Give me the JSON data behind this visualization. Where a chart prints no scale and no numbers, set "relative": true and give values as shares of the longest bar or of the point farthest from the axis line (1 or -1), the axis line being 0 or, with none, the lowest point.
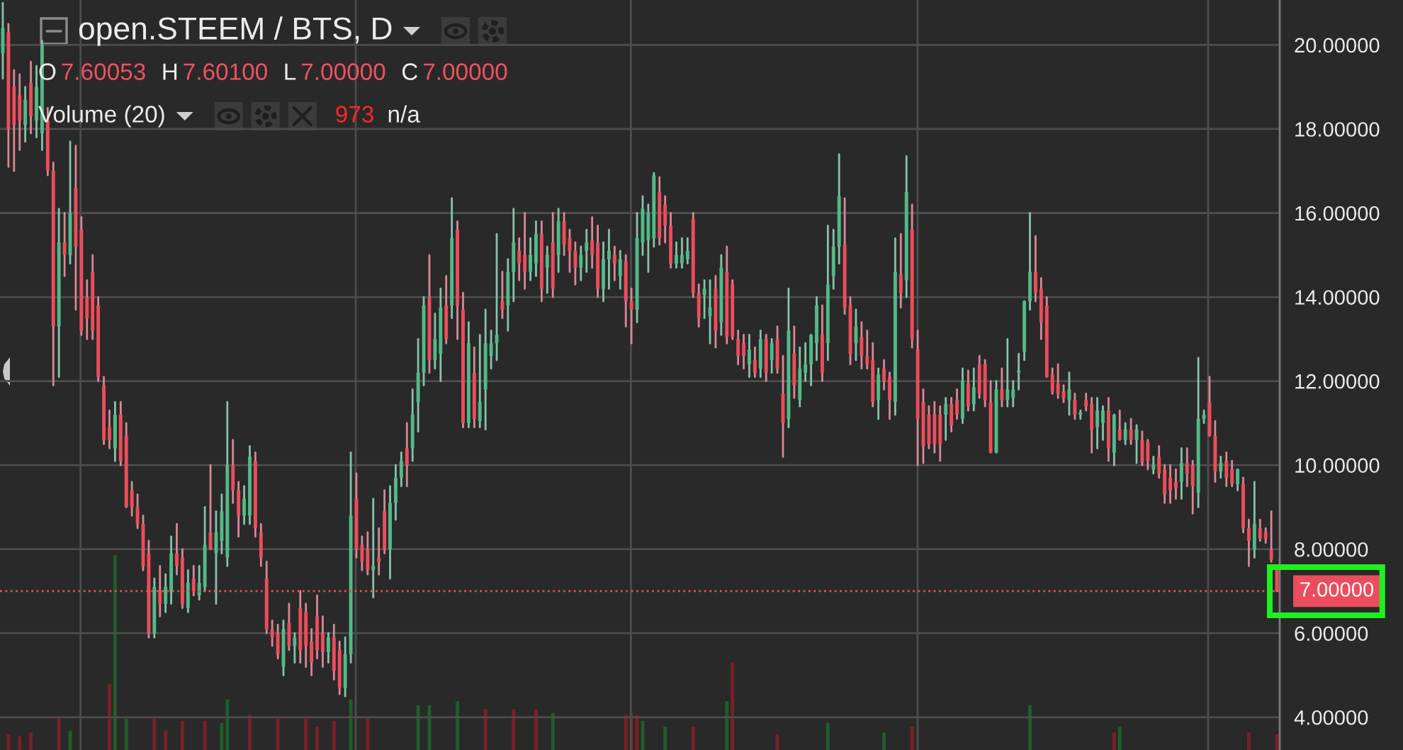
{
  "chart_data": [
    {
      "type": "candlestick",
      "title": "open.STEEM / BTS, D",
      "categories": [
        null,
        null,
        null,
        null,
        null,
        null,
        null,
        null,
        null,
        null,
        null,
        null,
        null,
        null,
        null,
        null,
        null,
        null,
        null,
        null,
        null,
        null,
        null,
        null,
        null,
        null,
        null,
        null,
        null,
        null,
        null,
        null,
        null,
        null,
        null,
        null,
        null,
        null,
        null,
        null,
        null,
        null,
        null,
        null,
        null,
        null,
        null,
        null,
        null,
        null,
        null,
        null,
        null,
        null,
        null,
        null,
        null,
        null,
        null,
        null,
        null,
        null,
        null,
        null,
        null,
        null,
        null,
        null,
        null,
        null,
        null,
        null,
        null,
        null,
        null,
        null,
        null,
        null,
        null,
        null,
        null,
        null,
        null,
        null,
        null,
        null,
        null,
        null,
        null,
        null,
        null,
        null,
        null,
        null,
        null,
        null,
        null,
        null,
        null,
        null,
        null,
        null,
        null,
        null,
        null,
        null,
        null,
        null,
        null,
        null,
        null,
        null,
        null,
        null,
        null,
        null,
        null,
        null,
        null,
        null,
        null,
        null,
        null,
        null,
        null,
        null,
        null,
        null,
        null,
        null,
        null,
        null,
        null,
        null,
        null,
        null,
        null,
        null,
        null,
        null,
        null,
        null,
        null,
        null,
        null,
        null,
        null,
        null,
        null,
        null,
        null,
        null,
        null,
        null,
        null,
        null,
        null,
        null,
        null,
        null,
        null,
        null,
        null,
        null,
        null,
        null,
        null,
        null,
        null,
        null,
        null,
        null,
        null,
        null,
        null,
        null,
        null,
        null,
        null,
        null,
        null,
        null,
        null,
        null,
        null,
        null,
        null,
        null,
        null,
        null,
        null,
        null,
        null,
        null,
        null,
        null,
        null,
        null,
        null,
        null,
        null,
        null,
        null,
        null,
        null,
        null,
        null,
        null,
        null,
        null,
        null,
        null,
        null,
        null,
        null,
        null,
        null,
        null,
        null,
        null,
        null,
        null,
        null,
        null,
        null,
        null,
        null,
        null
      ],
      "ohlc": [
        [
          19.8,
          21.0,
          19.2,
          20.4
        ],
        [
          20.3,
          20.5,
          17.1,
          18.0
        ],
        [
          19.0,
          19.4,
          17.0,
          18.1
        ],
        [
          18.8,
          19.3,
          17.5,
          18.2
        ],
        [
          18.1,
          19.0,
          17.7,
          18.7
        ],
        [
          19.1,
          19.6,
          17.9,
          18.3
        ],
        [
          18.2,
          19.5,
          17.8,
          19.0
        ],
        [
          17.9,
          20.1,
          17.5,
          20.0
        ],
        [
          18.2,
          18.5,
          16.9,
          17.0
        ],
        [
          17.0,
          17.2,
          11.9,
          13.3
        ],
        [
          13.3,
          16.1,
          12.1,
          15.3
        ],
        [
          15.3,
          16.0,
          14.5,
          15.0
        ],
        [
          15.0,
          17.7,
          14.8,
          16.0
        ],
        [
          16.6,
          17.6,
          13.7,
          15.2
        ],
        [
          15.6,
          15.9,
          13.1,
          13.2
        ],
        [
          14.0,
          14.4,
          13.0,
          13.5
        ],
        [
          14.6,
          15.0,
          13.0,
          13.2
        ],
        [
          13.8,
          14.0,
          12.0,
          12.1
        ],
        [
          11.9,
          12.1,
          10.5,
          10.6
        ],
        [
          10.9,
          11.3,
          10.4,
          10.6
        ],
        [
          10.4,
          11.5,
          10.1,
          11.2
        ],
        [
          11.2,
          11.5,
          10.0,
          10.1
        ],
        [
          10.7,
          11.0,
          9.0,
          9.0
        ],
        [
          9.4,
          9.6,
          8.8,
          9.0
        ],
        [
          9.0,
          9.3,
          8.5,
          8.6
        ],
        [
          8.6,
          8.8,
          7.5,
          7.6
        ],
        [
          7.9,
          8.2,
          5.9,
          6.0
        ],
        [
          6.0,
          7.3,
          5.9,
          7.1
        ],
        [
          7.0,
          7.6,
          6.4,
          6.7
        ],
        [
          6.7,
          7.4,
          6.5,
          7.1
        ],
        [
          7.0,
          8.3,
          6.7,
          7.9
        ],
        [
          7.9,
          8.6,
          7.4,
          7.6
        ],
        [
          7.8,
          8.0,
          6.6,
          6.7
        ],
        [
          6.6,
          7.5,
          6.5,
          7.2
        ],
        [
          7.3,
          7.6,
          6.9,
          7.0
        ],
        [
          6.9,
          7.6,
          6.8,
          7.2
        ],
        [
          7.1,
          9.0,
          7.0,
          8.1
        ],
        [
          8.4,
          10.0,
          8.0,
          8.0
        ],
        [
          7.9,
          8.9,
          6.7,
          8.4
        ],
        [
          8.2,
          9.3,
          7.9,
          8.9
        ],
        [
          7.8,
          11.5,
          7.6,
          10.0
        ],
        [
          10.0,
          10.6,
          9.1,
          9.4
        ],
        [
          9.4,
          9.6,
          8.3,
          8.8
        ],
        [
          8.8,
          9.5,
          8.6,
          9.2
        ],
        [
          8.8,
          10.45,
          8.6,
          10.2
        ],
        [
          10.1,
          10.3,
          8.3,
          8.5
        ],
        [
          8.4,
          8.6,
          7.6,
          7.8
        ],
        [
          7.3,
          7.7,
          6.0,
          6.1
        ],
        [
          6.1,
          6.3,
          5.7,
          5.9
        ],
        [
          6.0,
          6.2,
          5.4,
          5.5
        ],
        [
          5.2,
          6.3,
          5.0,
          6.1
        ],
        [
          6.25,
          6.7,
          5.6,
          5.7
        ],
        [
          5.7,
          6.0,
          5.3,
          5.9
        ],
        [
          6.6,
          7.0,
          5.3,
          5.6
        ],
        [
          6.5,
          6.7,
          5.2,
          5.7
        ],
        [
          5.8,
          6.1,
          5.0,
          5.3
        ],
        [
          6.4,
          6.9,
          5.4,
          5.6
        ],
        [
          6.0,
          6.4,
          5.2,
          5.55
        ],
        [
          5.55,
          6.0,
          5.3,
          5.9
        ],
        [
          5.9,
          6.2,
          4.9,
          5.1
        ],
        [
          5.6,
          5.8,
          4.55,
          4.7
        ],
        [
          4.7,
          5.9,
          4.5,
          5.5
        ],
        [
          5.5,
          10.3,
          5.3,
          8.8
        ],
        [
          9.2,
          9.8,
          7.8,
          8.0
        ],
        [
          8.1,
          8.3,
          7.5,
          7.7
        ],
        [
          8.0,
          8.4,
          7.4,
          7.5
        ],
        [
          7.5,
          9.2,
          6.85,
          7.6
        ],
        [
          7.8,
          8.5,
          7.4,
          7.7
        ],
        [
          8.9,
          9.4,
          7.9,
          8.0
        ],
        [
          8.0,
          9.5,
          7.3,
          9.1
        ],
        [
          9.1,
          10.0,
          8.7,
          9.7
        ],
        [
          9.7,
          10.3,
          9.5,
          10.1
        ],
        [
          10.4,
          11.0,
          9.5,
          10.0
        ],
        [
          10.4,
          11.8,
          10.1,
          11.2
        ],
        [
          11.5,
          13.0,
          10.8,
          12.2
        ],
        [
          12.2,
          14.0,
          11.9,
          13.8
        ],
        [
          14.0,
          15.0,
          12.2,
          12.5
        ],
        [
          12.5,
          13.6,
          12.3,
          13.0
        ],
        [
          12.65,
          14.2,
          12.0,
          13.75
        ],
        [
          13.8,
          14.5,
          12.9,
          13.0
        ],
        [
          13.8,
          16.35,
          13.5,
          15.4
        ],
        [
          15.6,
          15.8,
          13.0,
          13.8
        ],
        [
          13.7,
          14.1,
          10.9,
          11.0
        ],
        [
          11.0,
          13.4,
          10.9,
          12.9
        ],
        [
          12.2,
          12.8,
          10.9,
          11.1
        ],
        [
          11.05,
          13.1,
          10.9,
          11.5
        ],
        [
          11.8,
          13.7,
          10.85,
          12.9
        ],
        [
          12.6,
          13.2,
          12.3,
          12.9
        ],
        [
          12.9,
          15.5,
          12.5,
          13.1
        ],
        [
          13.9,
          14.6,
          13.5,
          13.7
        ],
        [
          13.8,
          14.9,
          13.2,
          14.6
        ],
        [
          14.6,
          16.1,
          13.9,
          15.3
        ],
        [
          15.1,
          15.4,
          14.4,
          14.8
        ],
        [
          15.0,
          16.0,
          14.2,
          14.6
        ],
        [
          14.6,
          15.4,
          14.4,
          15.0
        ],
        [
          14.8,
          15.8,
          14.5,
          15.5
        ],
        [
          15.5,
          15.8,
          13.9,
          14.2
        ],
        [
          14.7,
          15.2,
          14.1,
          15.0
        ],
        [
          15.3,
          16.0,
          14.0,
          14.2
        ],
        [
          15.0,
          16.1,
          14.6,
          15.8
        ],
        [
          15.8,
          16.0,
          15.0,
          15.25
        ],
        [
          15.4,
          15.6,
          14.6,
          15.1
        ],
        [
          15.1,
          15.3,
          14.3,
          14.7
        ],
        [
          14.7,
          15.2,
          14.4,
          15.0
        ],
        [
          15.1,
          15.6,
          14.6,
          15.3
        ],
        [
          15.35,
          15.9,
          14.7,
          15.0
        ],
        [
          15.3,
          15.7,
          14.0,
          14.2
        ],
        [
          14.2,
          15.3,
          13.9,
          14.9
        ],
        [
          14.9,
          15.6,
          14.2,
          15.1
        ],
        [
          15.0,
          15.2,
          14.4,
          14.8
        ],
        [
          14.5,
          15.1,
          14.2,
          14.9
        ],
        [
          14.85,
          15.0,
          13.3,
          13.9
        ],
        [
          13.9,
          14.2,
          12.9,
          13.7
        ],
        [
          13.7,
          16.0,
          13.4,
          15.4
        ],
        [
          15.3,
          16.4,
          15.0,
          16.1
        ],
        [
          15.35,
          16.2,
          14.6,
          16.0
        ],
        [
          15.4,
          16.95,
          15.2,
          16.9
        ],
        [
          16.5,
          16.85,
          15.25,
          15.4
        ],
        [
          16.2,
          16.4,
          15.3,
          15.7
        ],
        [
          15.7,
          16.0,
          14.7,
          14.8
        ],
        [
          14.8,
          15.3,
          14.7,
          15.0
        ],
        [
          14.8,
          15.4,
          14.7,
          15.0
        ],
        [
          14.9,
          15.4,
          14.8,
          15.1
        ],
        [
          15.85,
          16.0,
          14.0,
          14.1
        ],
        [
          14.1,
          14.3,
          13.3,
          13.5
        ],
        [
          14.05,
          14.4,
          13.5,
          14.2
        ],
        [
          13.55,
          14.4,
          12.9,
          13.75
        ],
        [
          14.2,
          14.5,
          12.8,
          13.2
        ],
        [
          13.4,
          15.0,
          13.1,
          14.7
        ],
        [
          14.6,
          15.2,
          12.9,
          13.05
        ],
        [
          14.3,
          14.4,
          13.0,
          13.05
        ],
        [
          13.0,
          13.2,
          12.4,
          12.6
        ],
        [
          12.9,
          13.1,
          12.3,
          12.6
        ],
        [
          12.4,
          13.1,
          12.1,
          12.75
        ],
        [
          12.5,
          12.8,
          12.1,
          12.2
        ],
        [
          12.3,
          13.2,
          12.1,
          13.0
        ],
        [
          13.0,
          13.1,
          12.0,
          12.2
        ],
        [
          12.5,
          13.0,
          12.2,
          12.9
        ],
        [
          13.0,
          13.3,
          12.2,
          12.3
        ],
        [
          11.7,
          12.6,
          10.2,
          11.0
        ],
        [
          11.1,
          14.2,
          10.9,
          13.2
        ],
        [
          12.65,
          13.3,
          11.6,
          11.9
        ],
        [
          11.55,
          12.8,
          11.4,
          12.3
        ],
        [
          12.2,
          12.9,
          12.0,
          12.4
        ],
        [
          12.4,
          13.1,
          11.9,
          13.1
        ],
        [
          12.9,
          14.0,
          12.5,
          13.8
        ],
        [
          13.1,
          13.8,
          12.0,
          12.2
        ],
        [
          12.9,
          15.7,
          12.5,
          14.3
        ],
        [
          14.5,
          15.6,
          14.2,
          15.2
        ],
        [
          15.2,
          17.4,
          14.8,
          16.4
        ],
        [
          15.25,
          16.35,
          13.6,
          13.75
        ],
        [
          13.8,
          14.0,
          12.4,
          12.65
        ],
        [
          12.9,
          13.7,
          12.5,
          13.3
        ],
        [
          13.05,
          13.4,
          12.3,
          12.6
        ],
        [
          12.6,
          13.2,
          12.3,
          12.4
        ],
        [
          12.5,
          12.9,
          11.4,
          11.5
        ],
        [
          11.55,
          12.3,
          11.1,
          12.15
        ],
        [
          12.3,
          12.5,
          11.8,
          12.0
        ],
        [
          12.1,
          12.2,
          11.1,
          11.55
        ],
        [
          11.5,
          15.4,
          11.2,
          14.6
        ],
        [
          14.55,
          15.5,
          13.75,
          14.1
        ],
        [
          14.4,
          17.35,
          14.0,
          16.5
        ],
        [
          15.6,
          16.2,
          12.8,
          13.0
        ],
        [
          12.75,
          13.2,
          10.0,
          11.1
        ],
        [
          11.5,
          11.8,
          10.05,
          10.45
        ],
        [
          11.2,
          11.4,
          10.4,
          10.5
        ],
        [
          11.2,
          11.5,
          10.3,
          10.5
        ],
        [
          11.2,
          11.4,
          10.1,
          10.5
        ],
        [
          11.2,
          11.6,
          10.6,
          11.45
        ],
        [
          11.45,
          11.6,
          10.8,
          10.95
        ],
        [
          11.55,
          11.8,
          11.1,
          11.2
        ],
        [
          11.1,
          12.3,
          11.0,
          12.0
        ],
        [
          11.95,
          12.25,
          11.3,
          11.4
        ],
        [
          11.45,
          12.3,
          11.3,
          11.85
        ],
        [
          12.4,
          12.6,
          11.6,
          11.7
        ],
        [
          12.4,
          12.5,
          11.4,
          11.55
        ],
        [
          11.5,
          12.0,
          10.3,
          10.3
        ],
        [
          10.3,
          12.0,
          10.3,
          11.8
        ],
        [
          11.8,
          12.3,
          11.4,
          11.55
        ],
        [
          11.55,
          13.0,
          11.4,
          11.8
        ],
        [
          11.6,
          12.0,
          11.4,
          11.8
        ],
        [
          12.2,
          12.65,
          11.8,
          12.25
        ],
        [
          12.7,
          13.9,
          12.5,
          13.9
        ],
        [
          13.9,
          16.0,
          13.7,
          14.6
        ],
        [
          14.6,
          15.45,
          13.9,
          14.1
        ],
        [
          14.2,
          14.45,
          13.0,
          13.4
        ],
        [
          13.8,
          14.0,
          12.1,
          12.1
        ],
        [
          12.15,
          12.3,
          11.7,
          11.75
        ],
        [
          11.95,
          12.4,
          11.6,
          11.7
        ],
        [
          11.75,
          11.9,
          11.5,
          11.6
        ],
        [
          11.55,
          12.2,
          11.2,
          11.8
        ],
        [
          11.55,
          11.7,
          11.1,
          11.2
        ],
        [
          11.2,
          11.3,
          11.1,
          11.25
        ],
        [
          11.55,
          11.7,
          11.3,
          11.4
        ],
        [
          11.45,
          11.6,
          10.3,
          10.85
        ],
        [
          10.9,
          11.6,
          10.4,
          11.3
        ],
        [
          11.0,
          11.4,
          10.6,
          11.3
        ],
        [
          11.3,
          11.6,
          10.1,
          10.4
        ],
        [
          10.3,
          11.2,
          10.0,
          11.2
        ],
        [
          10.85,
          11.3,
          10.6,
          10.6
        ],
        [
          10.6,
          11.0,
          10.5,
          10.85
        ],
        [
          10.85,
          11.1,
          10.5,
          10.6
        ],
        [
          10.6,
          10.95,
          10.05,
          10.85
        ],
        [
          10.6,
          10.8,
          10.0,
          10.05
        ],
        [
          10.55,
          10.6,
          9.9,
          10.1
        ],
        [
          9.9,
          10.2,
          9.8,
          10.0
        ],
        [
          10.2,
          10.45,
          9.7,
          9.8
        ],
        [
          9.9,
          10.0,
          9.1,
          9.3
        ],
        [
          9.7,
          10.0,
          9.1,
          9.4
        ],
        [
          9.6,
          9.9,
          9.2,
          9.45
        ],
        [
          9.6,
          10.4,
          9.2,
          10.05
        ],
        [
          10.05,
          10.4,
          9.5,
          9.8
        ],
        [
          10.0,
          10.1,
          8.85,
          9.5
        ],
        [
          9.35,
          12.55,
          9.0,
          11.1
        ],
        [
          11.1,
          11.3,
          11.0,
          11.2
        ],
        [
          11.5,
          12.1,
          10.7,
          10.7
        ],
        [
          10.7,
          11.05,
          9.6,
          9.85
        ],
        [
          9.85,
          10.2,
          9.7,
          10.05
        ],
        [
          10.1,
          10.3,
          9.5,
          9.7
        ],
        [
          9.9,
          10.1,
          9.5,
          9.55
        ],
        [
          9.55,
          9.9,
          9.4,
          9.9
        ],
        [
          9.55,
          9.7,
          8.4,
          8.5
        ],
        [
          8.5,
          8.7,
          7.6,
          8.2
        ],
        [
          8.0,
          9.6,
          7.8,
          8.6
        ],
        [
          8.5,
          8.7,
          8.2,
          8.25
        ],
        [
          8.4,
          8.5,
          8.15,
          8.25
        ],
        [
          8.0,
          8.9,
          7.7,
          7.75
        ],
        [
          7.60053,
          7.601,
          7.0,
          7.0
        ]
      ],
      "colors": [
        "#53b987",
        "#eb4d5c",
        "#eb4d5c",
        "#eb4d5c",
        "#53b987",
        "#eb4d5c",
        "#53b987",
        "#53b987",
        "#eb4d5c",
        "#eb4d5c",
        "#53b987",
        "#eb4d5c",
        "#53b987",
        "#eb4d5c",
        "#eb4d5c",
        "#eb4d5c",
        "#eb4d5c",
        "#eb4d5c",
        "#eb4d5c",
        "#eb4d5c",
        "#53b987",
        "#eb4d5c",
        "#eb4d5c",
        "#eb4d5c",
        "#eb4d5c",
        "#eb4d5c",
        "#eb4d5c",
        "#53b987",
        "#eb4d5c",
        "#53b987",
        "#53b987",
        "#eb4d5c",
        "#eb4d5c",
        "#53b987",
        "#eb4d5c",
        "#53b987",
        "#53b987",
        "#eb4d5c",
        "#53b987",
        "#53b987",
        "#53b987",
        "#eb4d5c",
        "#eb4d5c",
        "#53b987",
        "#53b987",
        "#eb4d5c",
        "#eb4d5c",
        "#eb4d5c",
        "#eb4d5c",
        "#eb4d5c",
        "#53b987",
        "#eb4d5c",
        "#53b987",
        "#eb4d5c",
        "#eb4d5c",
        "#eb4d5c",
        "#eb4d5c",
        "#eb4d5c",
        "#53b987",
        "#eb4d5c",
        "#eb4d5c",
        "#53b987",
        "#53b987",
        "#eb4d5c",
        "#eb4d5c",
        "#eb4d5c",
        "#53b987",
        "#eb4d5c",
        "#eb4d5c",
        "#53b987",
        "#53b987",
        "#53b987",
        "#eb4d5c",
        "#53b987",
        "#53b987",
        "#53b987",
        "#eb4d5c",
        "#53b987",
        "#53b987",
        "#eb4d5c",
        "#53b987",
        "#eb4d5c",
        "#eb4d5c",
        "#53b987",
        "#eb4d5c",
        "#53b987",
        "#53b987",
        "#53b987",
        "#53b987",
        "#eb4d5c",
        "#53b987",
        "#53b987",
        "#eb4d5c",
        "#eb4d5c",
        "#53b987",
        "#53b987",
        "#eb4d5c",
        "#53b987",
        "#eb4d5c",
        "#53b987",
        "#eb4d5c",
        "#eb4d5c",
        "#eb4d5c",
        "#53b987",
        "#53b987",
        "#eb4d5c",
        "#eb4d5c",
        "#53b987",
        "#53b987",
        "#eb4d5c",
        "#53b987",
        "#eb4d5c",
        "#eb4d5c",
        "#53b987",
        "#53b987",
        "#53b987",
        "#53b987",
        "#eb4d5c",
        "#eb4d5c",
        "#eb4d5c",
        "#53b987",
        "#53b987",
        "#53b987",
        "#eb4d5c",
        "#eb4d5c",
        "#53b987",
        "#53b987",
        "#eb4d5c",
        "#53b987",
        "#eb4d5c",
        "#eb4d5c",
        "#eb4d5c",
        "#eb4d5c",
        "#53b987",
        "#eb4d5c",
        "#53b987",
        "#eb4d5c",
        "#53b987",
        "#eb4d5c",
        "#eb4d5c",
        "#53b987",
        "#eb4d5c",
        "#53b987",
        "#53b987",
        "#53b987",
        "#53b987",
        "#eb4d5c",
        "#53b987",
        "#53b987",
        "#53b987",
        "#eb4d5c",
        "#eb4d5c",
        "#53b987",
        "#eb4d5c",
        "#eb4d5c",
        "#eb4d5c",
        "#53b987",
        "#eb4d5c",
        "#eb4d5c",
        "#53b987",
        "#eb4d5c",
        "#53b987",
        "#eb4d5c",
        "#eb4d5c",
        "#eb4d5c",
        "#eb4d5c",
        "#eb4d5c",
        "#eb4d5c",
        "#53b987",
        "#eb4d5c",
        "#eb4d5c",
        "#53b987",
        "#eb4d5c",
        "#53b987",
        "#eb4d5c",
        "#eb4d5c",
        "#eb4d5c",
        "#53b987",
        "#eb4d5c",
        "#53b987",
        "#53b987",
        "#53b987",
        "#53b987",
        "#53b987",
        "#eb4d5c",
        "#eb4d5c",
        "#eb4d5c",
        "#eb4d5c",
        "#eb4d5c",
        "#eb4d5c",
        "#53b987",
        "#eb4d5c",
        "#53b987",
        "#eb4d5c",
        "#eb4d5c",
        "#53b987",
        "#53b987",
        "#eb4d5c",
        "#53b987",
        "#eb4d5c",
        "#53b987",
        "#eb4d5c",
        "#53b987",
        "#eb4d5c",
        "#eb4d5c",
        "#53b987",
        "#eb4d5c",
        "#eb4d5c",
        "#eb4d5c",
        "#eb4d5c",
        "#53b987",
        "#eb4d5c",
        "#eb4d5c",
        "#53b987",
        "#53b987",
        "#eb4d5c",
        "#eb4d5c",
        "#53b987",
        "#eb4d5c",
        "#eb4d5c",
        "#53b987",
        "#eb4d5c",
        "#eb4d5c",
        "#53b987",
        "#eb4d5c",
        "#eb4d5c",
        "#eb4d5c",
        "#eb4d5c"
      ],
      "ylim": [
        3.22,
        21.07
      ],
      "yticks": [
        {
          "value": 4,
          "label": "4.00000"
        },
        {
          "value": 6,
          "label": "6.00000"
        },
        {
          "value": 8,
          "label": "8.00000"
        },
        {
          "value": 10,
          "label": "10.00000"
        },
        {
          "value": 12,
          "label": "12.00000"
        },
        {
          "value": 14,
          "label": "14.00000"
        },
        {
          "value": 16,
          "label": "16.00000"
        },
        {
          "value": 18,
          "label": "18.00000"
        },
        {
          "value": 20,
          "label": "20.00000"
        }
      ],
      "grid": true,
      "ref_lines": [
        {
          "axis": "y",
          "value": 7.0,
          "label": "7.00000",
          "color": "#eb4d5c",
          "line_style": "dotted"
        }
      ],
      "annotations": [
        "O 7.60053",
        "H 7.60100",
        "L 7.00000",
        "C 7.00000"
      ]
    },
    {
      "type": "bar",
      "title": "Volume (20)",
      "relative": true,
      "categories": [
        null,
        null,
        null,
        null,
        null,
        null,
        null,
        null,
        null,
        null,
        null,
        null,
        null,
        null,
        null,
        null,
        null,
        null,
        null,
        null,
        null,
        null,
        null,
        null,
        null,
        null,
        null,
        null,
        null,
        null,
        null,
        null,
        null,
        null,
        null,
        null,
        null,
        null,
        null,
        null,
        null,
        null,
        null,
        null,
        null,
        null,
        null,
        null,
        null,
        null,
        null,
        null,
        null,
        null,
        null,
        null,
        null,
        null,
        null,
        null,
        null,
        null,
        null,
        null,
        null,
        null,
        null,
        null,
        null,
        null,
        null,
        null,
        null,
        null,
        null,
        null,
        null,
        null,
        null,
        null,
        null,
        null,
        null,
        null,
        null,
        null,
        null,
        null,
        null,
        null,
        null,
        null,
        null,
        null,
        null,
        null,
        null,
        null,
        null,
        null,
        null,
        null,
        null,
        null,
        null,
        null,
        null,
        null,
        null,
        null,
        null,
        null,
        null,
        null,
        null,
        null,
        null,
        null,
        null,
        null,
        null,
        null,
        null,
        null,
        null,
        null,
        null,
        null,
        null,
        null,
        null,
        null,
        null,
        null,
        null,
        null,
        null,
        null,
        null,
        null,
        null,
        null,
        null,
        null,
        null,
        null,
        null,
        null,
        null,
        null,
        null,
        null,
        null,
        null,
        null,
        null,
        null,
        null,
        null,
        null,
        null,
        null,
        null,
        null,
        null,
        null,
        null,
        null,
        null,
        null,
        null,
        null,
        null,
        null,
        null,
        null,
        null,
        null,
        null,
        null,
        null,
        null,
        null,
        null,
        null,
        null,
        null,
        null,
        null,
        null,
        null,
        null,
        null,
        null,
        null,
        null,
        null,
        null,
        null,
        null,
        null,
        null,
        null,
        null,
        null,
        null,
        null,
        null,
        null,
        null,
        null,
        null,
        null,
        null,
        null,
        null,
        null,
        null,
        null,
        null,
        null,
        null,
        null,
        null,
        null,
        null,
        null,
        null
      ],
      "values": [
        null,
        0.08,
        null,
        0.07,
        null,
        0.09,
        null,
        null,
        null,
        null,
        0.16,
        null,
        0.1,
        null,
        null,
        null,
        null,
        null,
        null,
        0.34,
        1,
        null,
        0.16,
        null,
        null,
        null,
        null,
        0.16,
        null,
        0.1,
        null,
        null,
        0.15,
        null,
        null,
        null,
        0.15,
        null,
        null,
        0.14,
        0.26,
        null,
        null,
        null,
        0.18,
        null,
        null,
        null,
        null,
        0.16,
        null,
        null,
        null,
        null,
        0.16,
        null,
        0.12,
        null,
        null,
        0.15,
        null,
        null,
        0.26,
        null,
        null,
        0.16,
        null,
        null,
        null,
        null,
        null,
        null,
        null,
        null,
        0.23,
        null,
        0.23,
        null,
        null,
        null,
        null,
        0.25,
        null,
        null,
        null,
        null,
        0.21,
        null,
        null,
        null,
        null,
        0.21,
        null,
        null,
        null,
        0.21,
        null,
        null,
        0.19,
        null,
        null,
        null,
        null,
        null,
        null,
        null,
        null,
        null,
        null,
        null,
        null,
        0.18,
        0.19,
        0.18,
        0.15,
        null,
        null,
        null,
        0.12,
        null,
        null,
        null,
        null,
        0.12,
        null,
        null,
        null,
        null,
        null,
        0.25,
        0.45,
        null,
        null,
        null,
        null,
        null,
        null,
        null,
        0.08,
        null,
        null,
        null,
        null,
        null,
        null,
        null,
        null,
        0.14,
        null,
        null,
        null,
        null,
        null,
        null,
        null,
        null,
        null,
        0.09,
        null,
        null,
        null,
        null,
        0.12,
        null,
        null,
        null,
        null,
        null,
        null,
        null,
        null,
        null,
        null,
        null,
        null,
        null,
        null,
        null,
        null,
        null,
        null,
        null,
        null,
        0.23,
        null,
        null,
        null,
        null,
        null,
        null,
        null,
        null,
        null,
        null,
        null,
        null,
        null,
        null,
        0.09,
        0.12,
        null,
        null,
        null,
        null,
        null,
        null,
        null,
        null,
        null,
        null,
        null,
        null,
        null,
        null,
        null,
        null,
        null,
        null,
        null,
        null,
        null,
        null,
        0.09,
        null,
        null,
        null,
        null,
        0.08
      ],
      "colors": [
        null,
        "#7a2026",
        null,
        "#7a2026",
        null,
        "#7a2026",
        null,
        null,
        null,
        null,
        "#7a2026",
        null,
        "#1e5e2a",
        null,
        null,
        null,
        null,
        null,
        null,
        "#7a2026",
        "#1e5e2a",
        null,
        "#1e5e2a",
        null,
        null,
        null,
        null,
        "#7a2026",
        null,
        "#7a2026",
        null,
        null,
        "#7a2026",
        null,
        null,
        null,
        "#7a2026",
        null,
        null,
        "#1e5e2a",
        "#1e5e2a",
        null,
        null,
        null,
        "#7a2026",
        null,
        null,
        null,
        null,
        "#7a2026",
        null,
        null,
        null,
        null,
        "#7a2026",
        null,
        "#7a2026",
        null,
        null,
        "#7a2026",
        null,
        null,
        "#1e5e2a",
        null,
        null,
        "#7a2026",
        null,
        null,
        null,
        null,
        null,
        null,
        null,
        null,
        "#1e5e2a",
        null,
        "#1e5e2a",
        null,
        null,
        null,
        null,
        "#1e5e2a",
        null,
        null,
        null,
        null,
        "#7a2026",
        null,
        null,
        null,
        null,
        "#7a2026",
        null,
        null,
        null,
        "#7a2026",
        null,
        null,
        "#1e5e2a",
        null,
        null,
        null,
        null,
        null,
        null,
        null,
        null,
        null,
        null,
        null,
        null,
        "#7a2026",
        "#7a2026",
        "#7a2026",
        "#1e5e2a",
        null,
        null,
        null,
        "#1e5e2a",
        null,
        null,
        null,
        null,
        "#7a2026",
        null,
        null,
        null,
        null,
        null,
        "#1e5e2a",
        "#7a2026",
        null,
        null,
        null,
        null,
        null,
        null,
        null,
        "#7a2026",
        null,
        null,
        null,
        null,
        null,
        null,
        null,
        null,
        "#1e5e2a",
        null,
        null,
        null,
        null,
        null,
        null,
        null,
        null,
        null,
        "#1e5e2a",
        null,
        null,
        null,
        null,
        "#7a2026",
        null,
        null,
        null,
        null,
        null,
        null,
        null,
        null,
        null,
        null,
        null,
        null,
        null,
        null,
        null,
        null,
        null,
        null,
        null,
        null,
        "#1e5e2a",
        null,
        null,
        null,
        null,
        null,
        null,
        null,
        null,
        null,
        null,
        null,
        null,
        null,
        null,
        "#7a2026",
        "#1e5e2a",
        null,
        null,
        null,
        null,
        null,
        null,
        null,
        null,
        null,
        null,
        null,
        null,
        null,
        null,
        null,
        null,
        null,
        null,
        null,
        null,
        null,
        null,
        "#7a2026",
        null,
        null,
        null,
        null,
        "#7a2026"
      ],
      "annotations": [
        "973",
        "n/a"
      ]
    }
  ]
}
